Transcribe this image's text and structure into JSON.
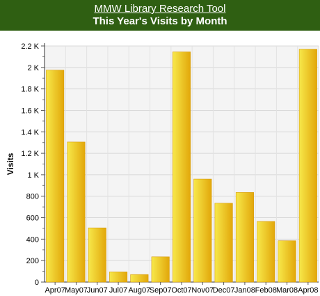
{
  "header": {
    "tool_link": "MMW Library Research Tool",
    "title": "This Year's Visits by Month"
  },
  "colors": {
    "header_bg": "#2f5f12",
    "bar_light": "#f7e84a",
    "bar_dark": "#e2a70a",
    "plot_bg": "#f4f4f4"
  },
  "chart_data": {
    "type": "bar",
    "title": "This Year's Visits by Month",
    "xlabel": "",
    "ylabel": "Visits",
    "categories": [
      "Apr07",
      "May07",
      "Jun07",
      "Jul07",
      "Aug07",
      "Sep07",
      "Oct07",
      "Nov07",
      "Dec07",
      "Jan08",
      "Feb08",
      "Mar08",
      "Apr08"
    ],
    "values": [
      1975,
      1305,
      505,
      95,
      70,
      235,
      2145,
      960,
      735,
      835,
      565,
      385,
      2170
    ],
    "ylim": [
      0,
      2200
    ],
    "yticks": [
      0,
      200,
      400,
      600,
      800,
      1000,
      1200,
      1400,
      1600,
      1800,
      2000,
      2200
    ],
    "yticklabels": [
      "0",
      "200",
      "400",
      "600",
      "800",
      "1 K",
      "1.2 K",
      "1.4 K",
      "1.6 K",
      "1.8 K",
      "2 K",
      "2.2 K"
    ],
    "grid": true,
    "legend": "none"
  }
}
